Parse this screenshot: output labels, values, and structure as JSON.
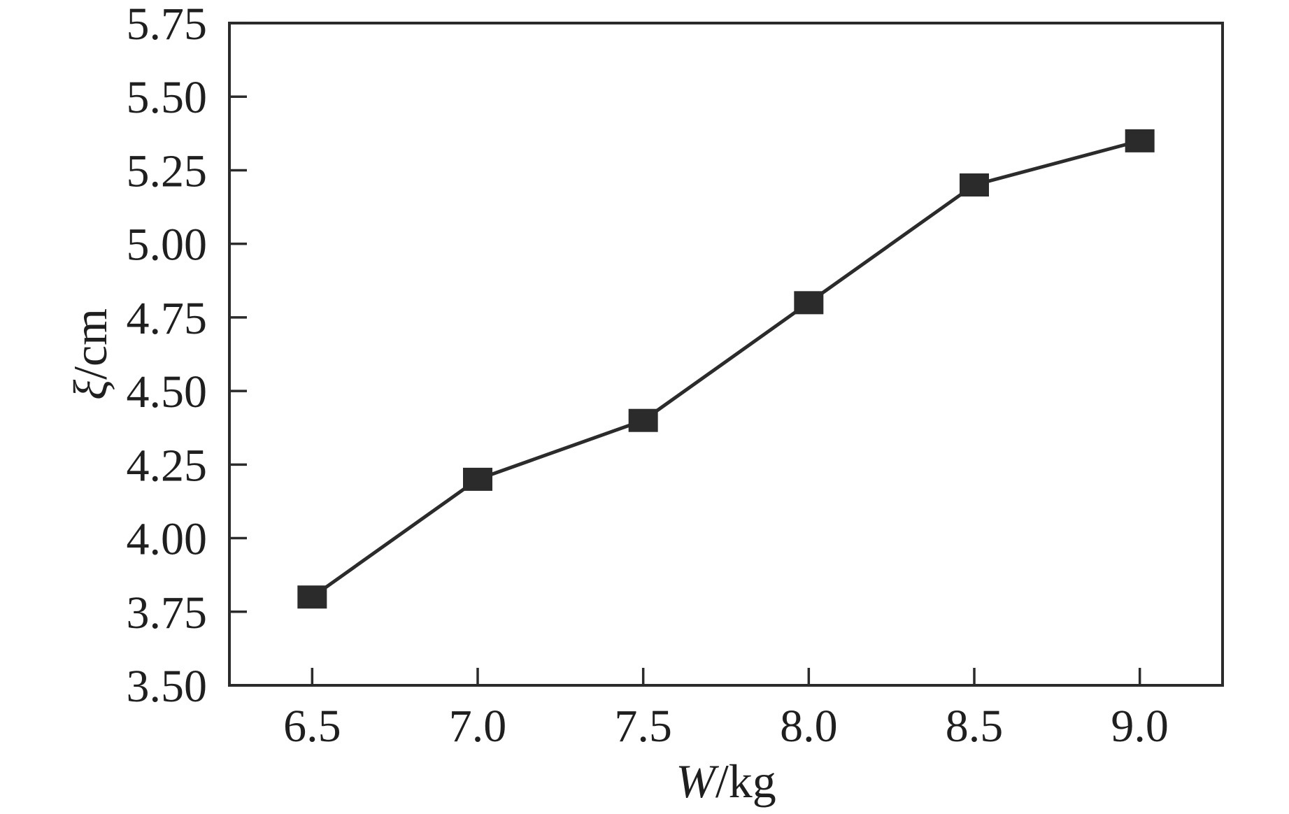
{
  "chart_data": {
    "type": "line",
    "title": "",
    "xlabel": "W/kg",
    "xlabel_variable": "W",
    "xlabel_unit": "/kg",
    "ylabel": "ξ/cm",
    "ylabel_variable": "ξ",
    "ylabel_unit": "/cm",
    "x": [
      6.5,
      7.0,
      7.5,
      8.0,
      8.5,
      9.0
    ],
    "y": [
      3.8,
      4.2,
      4.4,
      4.8,
      5.2,
      5.35
    ],
    "xlim": [
      6.25,
      9.25
    ],
    "ylim": [
      3.5,
      5.75
    ],
    "xticks": [
      6.5,
      7.0,
      7.5,
      8.0,
      8.5,
      9.0
    ],
    "xtick_labels": [
      "6.5",
      "7.0",
      "7.5",
      "8.0",
      "8.5",
      "9.0"
    ],
    "yticks": [
      5.75,
      5.5,
      5.25,
      5.0,
      4.75,
      4.5,
      4.25,
      4.0,
      3.75,
      3.5
    ],
    "ytick_labels": [
      "5.75",
      "5.50",
      "5.25",
      "5.00",
      "4.75",
      "4.50",
      "4.25",
      "4.00",
      "3.75",
      "3.50"
    ],
    "grid": false,
    "legend": false,
    "marker": "square",
    "line_style": "solid",
    "colors": {
      "line": "#2b2b2b",
      "marker": "#2b2b2b",
      "axis": "#2b2b2b",
      "text": "#1f1f1f",
      "background": "#ffffff"
    }
  }
}
